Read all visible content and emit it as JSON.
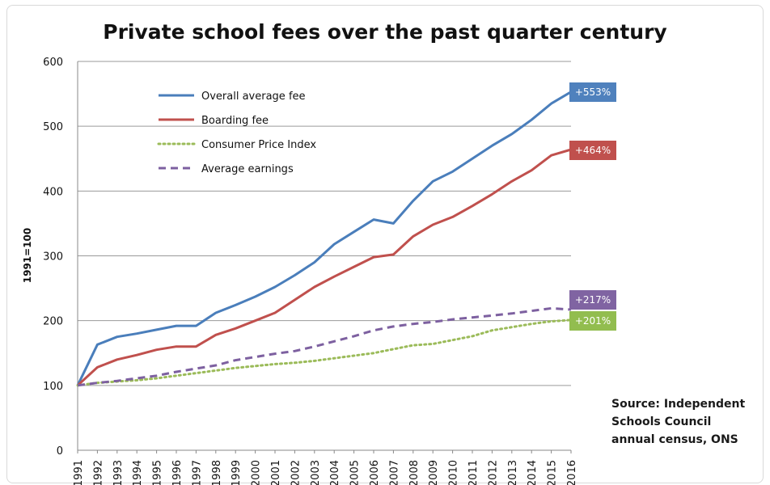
{
  "chart_data": {
    "type": "line",
    "title": "Private school fees over the past quarter century",
    "xlabel": "",
    "ylabel": "1991=100",
    "ylim": [
      0,
      600
    ],
    "yticks": [
      0,
      100,
      200,
      300,
      400,
      500,
      600
    ],
    "grid": true,
    "legend_position": "top-left",
    "categories": [
      "1991",
      "1992",
      "1993",
      "1994",
      "1995",
      "1996",
      "1997",
      "1998",
      "1999",
      "2000",
      "2001",
      "2002",
      "2003",
      "2004",
      "2005",
      "2006",
      "2007",
      "2008",
      "2009",
      "2010",
      "2011",
      "2012",
      "2013",
      "2014",
      "2015",
      "2016"
    ],
    "series": [
      {
        "name": "Overall average fee",
        "color": "#4a7ebb",
        "style": "solid",
        "values": [
          100,
          163,
          175,
          180,
          186,
          192,
          192,
          212,
          224,
          237,
          252,
          270,
          290,
          318,
          337,
          356,
          350,
          385,
          415,
          430,
          450,
          470,
          488,
          510,
          535,
          553
        ],
        "end_label": "+553%"
      },
      {
        "name": "Boarding fee",
        "color": "#c0504d",
        "style": "solid",
        "values": [
          100,
          128,
          140,
          147,
          155,
          160,
          160,
          178,
          188,
          200,
          212,
          232,
          252,
          268,
          283,
          298,
          302,
          330,
          348,
          360,
          377,
          395,
          415,
          432,
          455,
          464
        ],
        "end_label": "+464%"
      },
      {
        "name": "Consumer Price Index",
        "color": "#9bbb59",
        "style": "dotted",
        "values": [
          100,
          104,
          106,
          108,
          111,
          115,
          119,
          123,
          127,
          130,
          133,
          135,
          138,
          142,
          146,
          150,
          156,
          162,
          164,
          170,
          176,
          185,
          190,
          195,
          199,
          201
        ],
        "end_label": "+201%"
      },
      {
        "name": "Average earnings",
        "color": "#7d60a0",
        "style": "dashed",
        "values": [
          100,
          104,
          107,
          111,
          115,
          121,
          126,
          131,
          139,
          144,
          149,
          153,
          160,
          168,
          176,
          185,
          191,
          195,
          198,
          202,
          205,
          208,
          211,
          215,
          219,
          217
        ],
        "end_label": "+217%"
      }
    ],
    "annotation": {
      "source_lines": [
        "Source: Independent",
        "Schools Council",
        "annual census, ONS"
      ]
    }
  },
  "badge_colors": {
    "Overall average fee": "#4f81bd",
    "Boarding fee": "#c0504d",
    "Consumer Price Index": "#92bd4f",
    "Average earnings": "#8064a2"
  }
}
